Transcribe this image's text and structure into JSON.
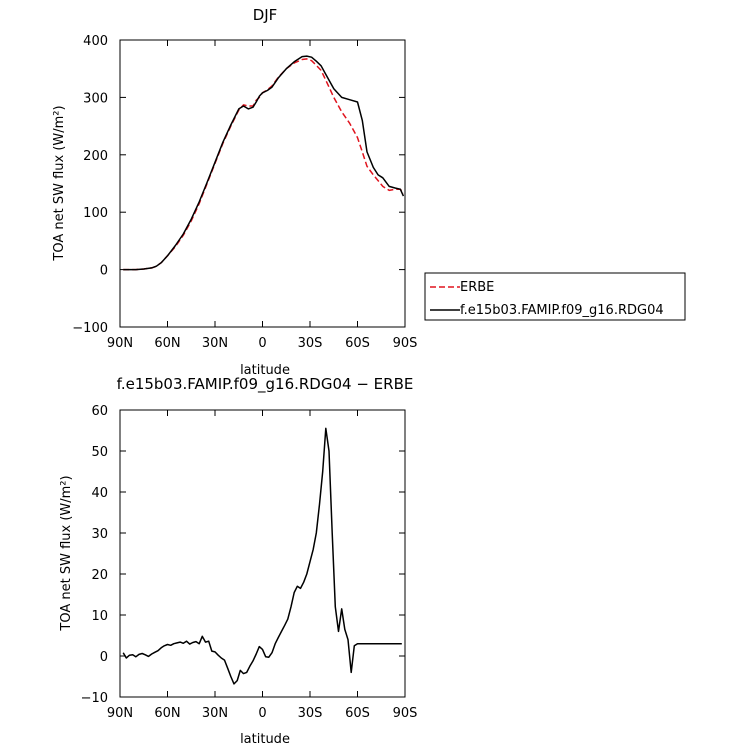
{
  "chart_data": [
    {
      "type": "line",
      "title": "DJF",
      "xlabel": "latitude",
      "ylabel": "TOA net SW flux (W/m²)",
      "xlim": [
        90,
        -90
      ],
      "ylim": [
        -100,
        400
      ],
      "x_tick_values": [
        90,
        60,
        30,
        0,
        -30,
        -60,
        -90
      ],
      "x_tick_labels": [
        "90N",
        "60N",
        "30N",
        "0",
        "30S",
        "60S",
        "90S"
      ],
      "y_tick_values": [
        -100,
        0,
        100,
        200,
        300,
        400
      ],
      "y_tick_labels": [
        "−100",
        "0",
        "100",
        "200",
        "300",
        "400"
      ],
      "legend_position": "right",
      "series": [
        {
          "name": "ERBE",
          "color": "#e0141e",
          "dash": "dashed",
          "x": [
            88,
            85,
            80,
            75,
            70,
            67,
            64,
            60,
            55,
            50,
            45,
            40,
            35,
            30,
            25,
            20,
            15,
            12,
            9,
            6,
            4,
            2,
            0,
            -3,
            -6,
            -10,
            -15,
            -20,
            -25,
            -28,
            -31,
            -34,
            -37,
            -40,
            -45,
            -50,
            -55,
            -60,
            -63,
            -66,
            -70,
            -73,
            -76,
            -80,
            -84,
            -87,
            -89
          ],
          "y": [
            0,
            0,
            0,
            1,
            3,
            6,
            12,
            24,
            40,
            60,
            85,
            115,
            150,
            185,
            220,
            250,
            278,
            287,
            285,
            285,
            295,
            300,
            308,
            313,
            320,
            335,
            350,
            360,
            366,
            367,
            364,
            356,
            347,
            330,
            300,
            275,
            255,
            230,
            205,
            180,
            165,
            155,
            145,
            138,
            140,
            140,
            133
          ]
        },
        {
          "name": "f.e15b03.FAMIP.f09_g16.RDG04",
          "color": "#000000",
          "dash": "solid",
          "x": [
            88,
            85,
            80,
            75,
            70,
            67,
            64,
            60,
            55,
            50,
            45,
            40,
            35,
            30,
            25,
            20,
            15,
            12,
            9,
            6,
            4,
            2,
            0,
            -3,
            -6,
            -10,
            -15,
            -20,
            -25,
            -28,
            -31,
            -34,
            -37,
            -40,
            -45,
            -50,
            -55,
            -60,
            -63,
            -66,
            -70,
            -73,
            -76,
            -80,
            -84,
            -87,
            -89
          ],
          "y": [
            0,
            0,
            0,
            1,
            3,
            6,
            12,
            24,
            42,
            62,
            88,
            118,
            152,
            187,
            222,
            252,
            280,
            285,
            280,
            283,
            292,
            302,
            308,
            312,
            318,
            334,
            350,
            362,
            371,
            372,
            370,
            363,
            355,
            340,
            315,
            300,
            296,
            292,
            260,
            205,
            178,
            165,
            160,
            145,
            142,
            140,
            128
          ]
        }
      ]
    },
    {
      "type": "line",
      "title": "f.e15b03.FAMIP.f09_g16.RDG04 − ERBE",
      "xlabel": "latitude",
      "ylabel": "TOA net SW flux (W/m²)",
      "xlim": [
        90,
        -90
      ],
      "ylim": [
        -10,
        60
      ],
      "x_tick_values": [
        90,
        60,
        30,
        0,
        -30,
        -60,
        -90
      ],
      "x_tick_labels": [
        "90N",
        "60N",
        "30N",
        "0",
        "30S",
        "60S",
        "90S"
      ],
      "y_tick_values": [
        -10,
        0,
        10,
        20,
        30,
        40,
        50,
        60
      ],
      "y_tick_labels": [
        "−10",
        "0",
        "10",
        "20",
        "30",
        "40",
        "50",
        "60"
      ],
      "series": [
        {
          "color": "#000000",
          "dash": "solid",
          "x": [
            88,
            86,
            84,
            82,
            80,
            78,
            76,
            74,
            72,
            70,
            68,
            66,
            64,
            62,
            60,
            58,
            56,
            54,
            52,
            50,
            48,
            46,
            44,
            42,
            40,
            38,
            36,
            34,
            32,
            30,
            28,
            26,
            24,
            22,
            20,
            18,
            16,
            14,
            12,
            10,
            8,
            6,
            4,
            2,
            0,
            -2,
            -4,
            -6,
            -8,
            -10,
            -12,
            -14,
            -16,
            -18,
            -20,
            -22,
            -24,
            -26,
            -28,
            -30,
            -32,
            -34,
            -36,
            -38,
            -40,
            -42,
            -44,
            -46,
            -48,
            -50,
            -52,
            -54,
            -56,
            -58,
            -60,
            -62,
            -64,
            -66,
            -68,
            -70,
            -72,
            -74,
            -76,
            -78,
            -80,
            -82,
            -84,
            -86,
            -88
          ],
          "y": [
            0.8,
            -0.5,
            0.2,
            0.3,
            -0.2,
            0.4,
            0.6,
            0.3,
            -0.1,
            0.5,
            0.9,
            1.3,
            2.0,
            2.5,
            2.8,
            2.6,
            3.0,
            3.2,
            3.4,
            3.1,
            3.6,
            2.9,
            3.3,
            3.5,
            3.0,
            4.8,
            3.4,
            3.6,
            1.2,
            1.0,
            0.2,
            -0.5,
            -1.0,
            -3.0,
            -5.0,
            -6.8,
            -6.0,
            -3.5,
            -4.3,
            -4.0,
            -2.5,
            -1.2,
            0.5,
            2.3,
            1.6,
            -0.2,
            -0.3,
            0.8,
            3.0,
            4.5,
            6.0,
            7.5,
            9.0,
            12.0,
            15.5,
            17.0,
            16.5,
            18.0,
            20.0,
            23.0,
            26.0,
            30.0,
            37.0,
            45.0,
            55.5,
            50.0,
            30.0,
            12.0,
            6.0,
            11.5,
            6.5,
            4.0,
            -4.0,
            2.5,
            3.0,
            3.0,
            3.0,
            3.0,
            3.0,
            3.0,
            3.0,
            3.0,
            3.0,
            3.0,
            3.0,
            3.0,
            3.0,
            3.0,
            3.0
          ]
        }
      ]
    }
  ]
}
